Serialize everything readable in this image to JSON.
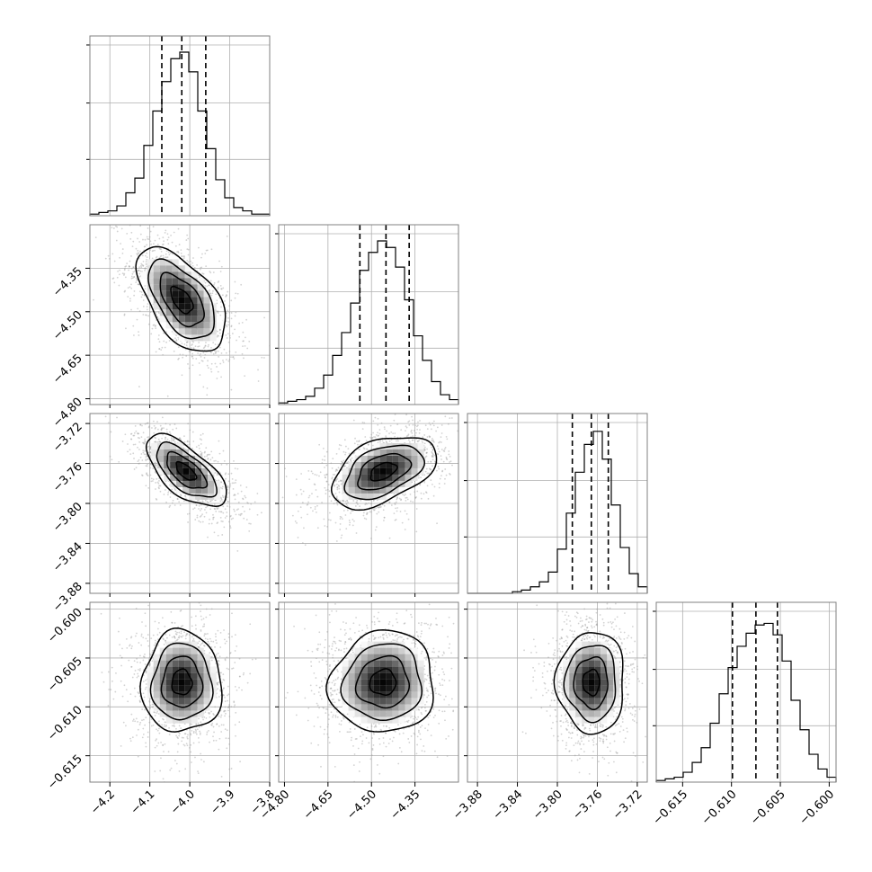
{
  "chart_data": {
    "type": "corner",
    "parameters": [
      {
        "ticks": [
          -4.2,
          -4.1,
          -4.0,
          -3.9,
          -3.8
        ],
        "tick_labels": [
          "−4.2",
          "−4.1",
          "−4.0",
          "−3.9",
          "−3.8"
        ],
        "range": [
          -4.25,
          -3.8
        ],
        "quantiles": [
          -4.07,
          -4.02,
          -3.96
        ],
        "hist": [
          0.01,
          0.02,
          0.03,
          0.06,
          0.14,
          0.23,
          0.43,
          0.64,
          0.82,
          0.96,
          1.0,
          0.88,
          0.64,
          0.41,
          0.22,
          0.11,
          0.05,
          0.03,
          0.01,
          0.01
        ]
      },
      {
        "ticks": [
          -4.8,
          -4.65,
          -4.5,
          -4.35
        ],
        "tick_labels": [
          "−4.80",
          "−4.65",
          "−4.50",
          "−4.35"
        ],
        "range": [
          -4.82,
          -4.2
        ],
        "quantiles": [
          -4.54,
          -4.45,
          -4.37
        ],
        "hist": [
          0.01,
          0.02,
          0.03,
          0.05,
          0.1,
          0.18,
          0.3,
          0.44,
          0.62,
          0.82,
          0.93,
          1.0,
          0.96,
          0.84,
          0.64,
          0.42,
          0.27,
          0.14,
          0.06,
          0.03
        ]
      },
      {
        "ticks": [
          -3.88,
          -3.84,
          -3.8,
          -3.76,
          -3.72
        ],
        "tick_labels": [
          "−3.88",
          "−3.84",
          "−3.80",
          "−3.76",
          "−3.72"
        ],
        "range": [
          -3.89,
          -3.71
        ],
        "quantiles": [
          -3.785,
          -3.766,
          -3.749
        ],
        "hist": [
          0.0,
          0.0,
          0.0,
          0.0,
          0.0,
          0.01,
          0.02,
          0.04,
          0.07,
          0.13,
          0.27,
          0.49,
          0.74,
          0.91,
          0.99,
          0.82,
          0.54,
          0.28,
          0.12,
          0.04
        ]
      },
      {
        "ticks": [
          -0.615,
          -0.61,
          -0.605,
          -0.6
        ],
        "tick_labels": [
          "−0.615",
          "−0.610",
          "−0.605",
          "−0.600"
        ],
        "range": [
          -0.6177,
          -0.5993
        ],
        "quantiles": [
          -0.6099,
          -0.6075,
          -0.6053
        ],
        "hist": [
          0.01,
          0.02,
          0.03,
          0.06,
          0.12,
          0.21,
          0.36,
          0.54,
          0.7,
          0.83,
          0.91,
          0.96,
          0.97,
          0.9,
          0.74,
          0.5,
          0.32,
          0.17,
          0.08,
          0.03
        ]
      }
    ],
    "pairs": [
      {
        "row": 1,
        "col": 0,
        "mean": [
          -4.02,
          -4.46
        ],
        "sd": [
          0.055,
          0.09
        ],
        "rho": -0.55
      },
      {
        "row": 2,
        "col": 0,
        "mean": [
          -4.01,
          -3.768
        ],
        "sd": [
          0.05,
          0.018
        ],
        "rho": -0.65
      },
      {
        "row": 2,
        "col": 1,
        "mean": [
          -4.46,
          -3.768
        ],
        "sd": [
          0.09,
          0.018
        ],
        "rho": 0.45
      },
      {
        "row": 3,
        "col": 0,
        "mean": [
          -4.02,
          -0.6075
        ],
        "sd": [
          0.05,
          0.0026
        ],
        "rho": 0.0
      },
      {
        "row": 3,
        "col": 1,
        "mean": [
          -4.46,
          -0.6075
        ],
        "sd": [
          0.09,
          0.0026
        ],
        "rho": 0.05
      },
      {
        "row": 3,
        "col": 2,
        "mean": [
          -3.766,
          -0.6075
        ],
        "sd": [
          0.017,
          0.0026
        ],
        "rho": 0.0
      }
    ],
    "grid": true,
    "colors": {
      "line": "#000000",
      "grid": "#b0b0b0",
      "scatter": "#9e9e9e",
      "frame": "#808080"
    }
  }
}
